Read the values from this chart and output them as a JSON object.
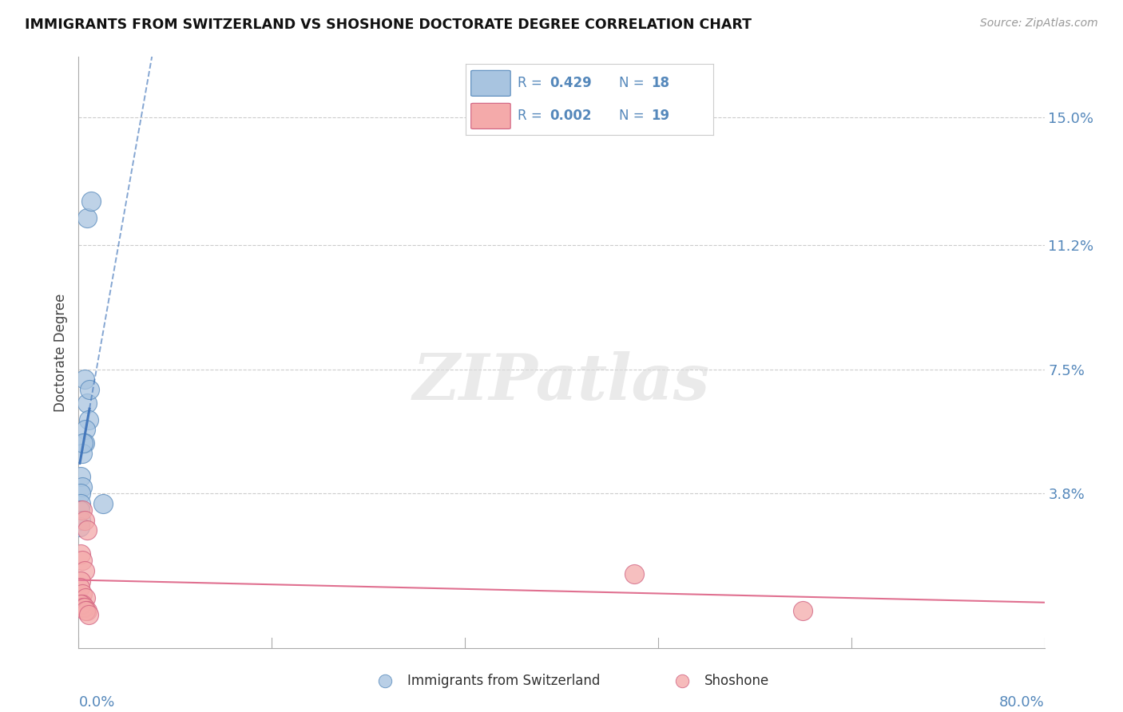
{
  "title": "IMMIGRANTS FROM SWITZERLAND VS SHOSHONE DOCTORATE DEGREE CORRELATION CHART",
  "source": "Source: ZipAtlas.com",
  "ylabel": "Doctorate Degree",
  "ytick_vals": [
    0.0,
    0.038,
    0.075,
    0.112,
    0.15
  ],
  "ytick_labels": [
    "",
    "3.8%",
    "7.5%",
    "11.2%",
    "15.0%"
  ],
  "xlim": [
    0.0,
    0.8
  ],
  "ylim": [
    -0.008,
    0.168
  ],
  "legend_r_blue": "0.429",
  "legend_n_blue": "18",
  "legend_r_pink": "0.002",
  "legend_n_pink": "19",
  "blue_fill": "#A8C4E0",
  "blue_edge": "#5588BB",
  "pink_fill": "#F4AAAA",
  "pink_edge": "#D06080",
  "blue_line": "#4477BB",
  "pink_line": "#E07090",
  "blue_scatter": [
    [
      0.007,
      0.12
    ],
    [
      0.01,
      0.125
    ],
    [
      0.005,
      0.072
    ],
    [
      0.007,
      0.065
    ],
    [
      0.009,
      0.069
    ],
    [
      0.008,
      0.06
    ],
    [
      0.006,
      0.057
    ],
    [
      0.005,
      0.053
    ],
    [
      0.003,
      0.05
    ],
    [
      0.004,
      0.053
    ],
    [
      0.002,
      0.043
    ],
    [
      0.003,
      0.04
    ],
    [
      0.002,
      0.038
    ],
    [
      0.002,
      0.035
    ],
    [
      0.001,
      0.033
    ],
    [
      0.002,
      0.03
    ],
    [
      0.001,
      0.028
    ],
    [
      0.02,
      0.035
    ]
  ],
  "pink_scatter": [
    [
      0.003,
      0.033
    ],
    [
      0.005,
      0.03
    ],
    [
      0.007,
      0.027
    ],
    [
      0.002,
      0.02
    ],
    [
      0.003,
      0.018
    ],
    [
      0.005,
      0.015
    ],
    [
      0.002,
      0.012
    ],
    [
      0.001,
      0.01
    ],
    [
      0.003,
      0.008
    ],
    [
      0.006,
      0.007
    ],
    [
      0.003,
      0.005
    ],
    [
      0.002,
      0.005
    ],
    [
      0.004,
      0.004
    ],
    [
      0.005,
      0.004
    ],
    [
      0.007,
      0.003
    ],
    [
      0.006,
      0.003
    ],
    [
      0.008,
      0.002
    ],
    [
      0.46,
      0.014
    ],
    [
      0.6,
      0.003
    ]
  ],
  "watermark_text": "ZIPatlas",
  "bg_color": "#FFFFFF",
  "grid_color": "#CCCCCC",
  "tick_color": "#5588BB"
}
